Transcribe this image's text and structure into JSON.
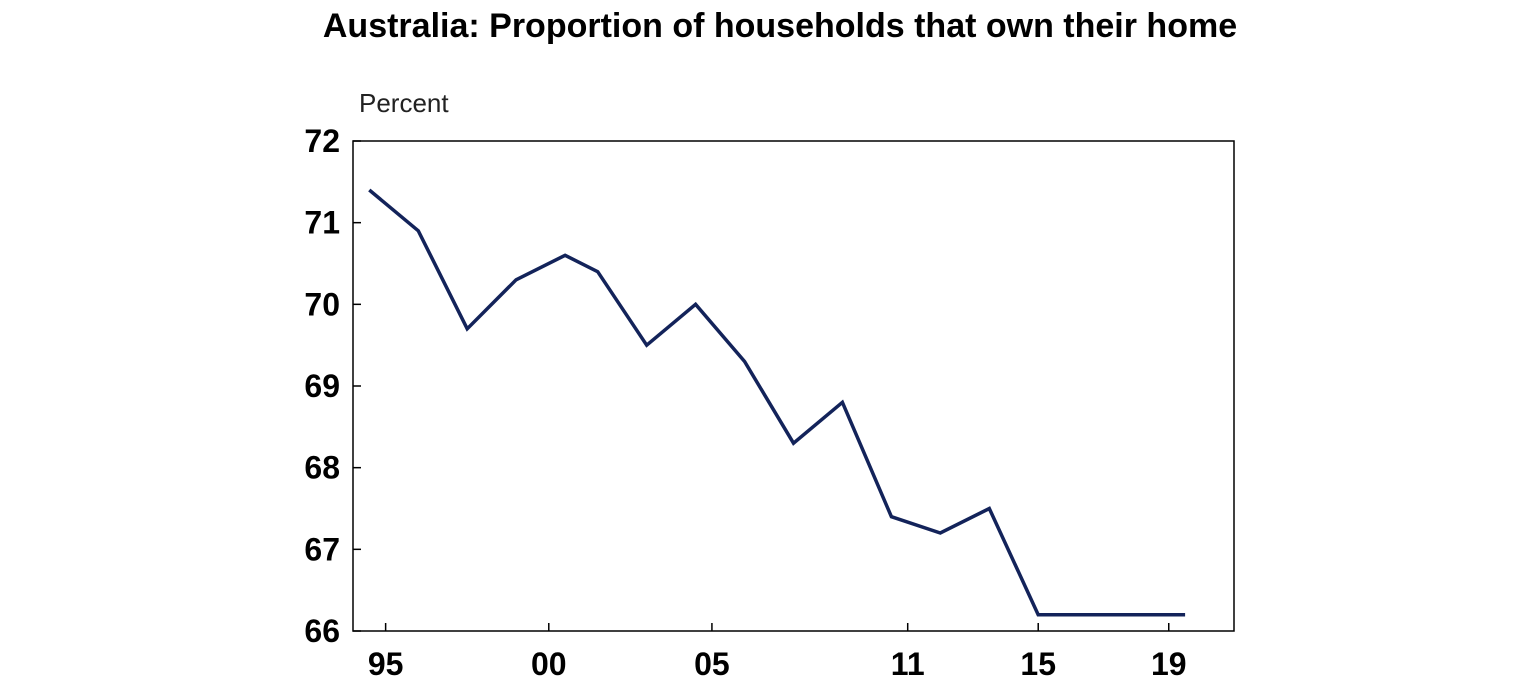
{
  "chart_data": {
    "type": "line",
    "title": "Australia: Proportion of households that own their home",
    "ylabel": "Percent",
    "xlabel": "",
    "ylim": [
      66,
      72
    ],
    "yticks": [
      "66",
      "67",
      "68",
      "69",
      "70",
      "71",
      "72"
    ],
    "xlim": [
      1994,
      2021
    ],
    "xticks": [
      {
        "label": "95",
        "year": 1995
      },
      {
        "label": "00",
        "year": 2000
      },
      {
        "label": "05",
        "year": 2005
      },
      {
        "label": "11",
        "year": 2011
      },
      {
        "label": "15",
        "year": 2015
      },
      {
        "label": "19",
        "year": 2019
      }
    ],
    "grid": false,
    "legend": "none",
    "line_color": "#13235a",
    "series": [
      {
        "x": [
          1994.5,
          1996,
          1997.5,
          1999,
          2000.5,
          2001.5,
          2003,
          2004.5,
          2006,
          2007.5,
          2009,
          2010.5,
          2012,
          2013.5,
          2015,
          2016.5,
          2018,
          2019.5
        ],
        "values": [
          71.4,
          70.9,
          69.7,
          70.3,
          70.6,
          70.4,
          69.5,
          70.0,
          69.3,
          68.3,
          68.8,
          67.4,
          67.2,
          67.5,
          66.2,
          66.2,
          66.2,
          66.2
        ]
      }
    ]
  }
}
